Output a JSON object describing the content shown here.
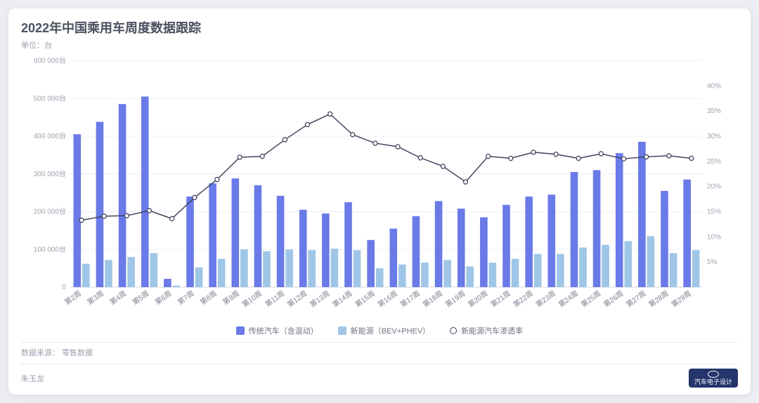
{
  "title": "2022年中国乘用车周度数据跟踪",
  "subtitle": "单位：台",
  "source_label": "数据来源：",
  "source_value": "零售数据",
  "author": "朱玉龙",
  "logo_text": "汽车电子设计",
  "legend": {
    "series1": "传统汽车（含混动）",
    "series2": "新能源（BEV+PHEV）",
    "series3": "新能源汽车渗透率"
  },
  "chart": {
    "type": "bar+line",
    "background_color": "#ffffff",
    "grid_color": "#eef0f5",
    "axis_color": "#d7dae2",
    "label_color": "#9ea2b0",
    "xlabel_color": "#7b7f8e",
    "font_size_axis": 10,
    "y_left": {
      "min": 0,
      "max": 600000,
      "step": 100000,
      "suffix": "台"
    },
    "y_right": {
      "min": 0,
      "max": 45,
      "step": 5,
      "suffix": "%"
    },
    "bar_group_width": 0.72,
    "bar_gap": 0.06,
    "categories": [
      "第2周",
      "第3周",
      "第4周",
      "第5周",
      "第6周",
      "第7周",
      "第8周",
      "第9周",
      "第10周",
      "第11周",
      "第12周",
      "第13周",
      "第14周",
      "第15周",
      "第16周",
      "第17周",
      "第18周",
      "第19周",
      "第20周",
      "第21周",
      "第22周",
      "第23周",
      "第24周",
      "第25周",
      "第26周",
      "第27周",
      "第28周",
      "第29周"
    ],
    "series_bars": [
      {
        "name": "traditional",
        "color": "#6a7ae8",
        "values": [
          405000,
          438000,
          485000,
          505000,
          22000,
          240000,
          275000,
          288000,
          270000,
          242000,
          205000,
          195000,
          225000,
          125000,
          155000,
          188000,
          228000,
          208000,
          185000,
          218000,
          240000,
          245000,
          305000,
          310000,
          355000,
          385000,
          255000,
          285000
        ]
      },
      {
        "name": "nev",
        "color": "#9fc6e7",
        "values": [
          62000,
          72000,
          80000,
          90000,
          4000,
          52000,
          75000,
          100000,
          95000,
          100000,
          98000,
          102000,
          98000,
          50000,
          60000,
          65000,
          72000,
          55000,
          65000,
          75000,
          88000,
          88000,
          105000,
          112000,
          122000,
          135000,
          90000,
          98000
        ]
      }
    ],
    "series_line": {
      "name": "penetration",
      "color": "#3c3f58",
      "marker_fill": "#ffffff",
      "marker_radius": 3,
      "line_width": 1.4,
      "values": [
        13.3,
        14.1,
        14.2,
        15.2,
        13.6,
        17.8,
        21.4,
        25.8,
        26.0,
        29.3,
        32.3,
        34.4,
        30.3,
        28.6,
        27.9,
        25.7,
        24.0,
        20.9,
        26.0,
        25.6,
        26.8,
        26.4,
        25.6,
        26.5,
        25.5,
        25.9,
        26.1,
        25.6
      ]
    }
  }
}
